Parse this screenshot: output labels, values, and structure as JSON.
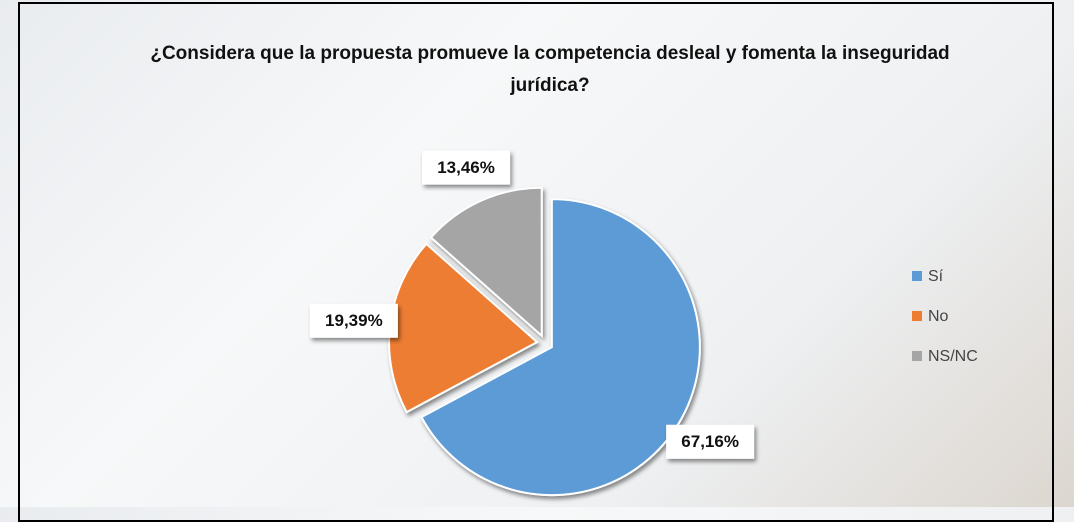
{
  "chart_data": {
    "type": "pie",
    "title": "¿Considera que la propuesta promueve la competencia desleal y fomenta la inseguridad jurídica?",
    "categories": [
      "Sí",
      "No",
      "NS/NC"
    ],
    "values": [
      67.16,
      19.39,
      13.46
    ],
    "value_labels": [
      "67,16%",
      "19,39%",
      "13,46%"
    ],
    "colors": [
      "#5b9bd5",
      "#ed7d31",
      "#a5a5a5"
    ],
    "legend": "right"
  }
}
